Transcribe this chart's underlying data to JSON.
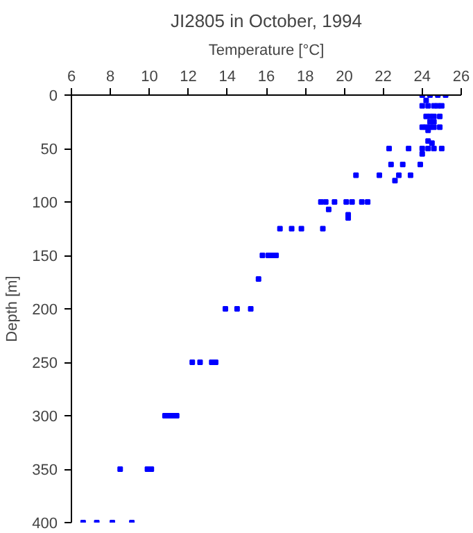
{
  "chart_data": {
    "type": "scatter",
    "title": "JI2805 in October, 1994",
    "xlabel": "Temperature [°C]",
    "ylabel": "Depth [m]",
    "xlim": [
      6,
      26
    ],
    "xticks": [
      6,
      8,
      10,
      12,
      14,
      16,
      18,
      20,
      22,
      24,
      26
    ],
    "ylim": [
      400,
      0
    ],
    "yticks": [
      0,
      50,
      100,
      150,
      200,
      250,
      300,
      350,
      400
    ],
    "grid": false,
    "marker": "square",
    "series": [
      {
        "color": "#0000ff",
        "x": [
          24.0,
          24.4,
          24.8,
          25.2,
          24.2,
          24.0,
          24.3,
          24.6,
          24.8,
          25.0,
          24.2,
          24.4,
          24.6,
          24.9,
          24.4,
          24.6,
          24.0,
          24.2,
          24.4,
          24.6,
          24.9,
          24.3,
          24.3,
          24.5,
          22.3,
          23.3,
          24.0,
          24.3,
          24.6,
          25.0,
          24.0,
          22.4,
          23.0,
          23.9,
          20.6,
          21.8,
          22.8,
          23.4,
          22.6,
          18.8,
          19.05,
          19.5,
          20.1,
          20.4,
          20.9,
          21.2,
          19.2,
          20.2,
          20.2,
          16.7,
          17.3,
          17.8,
          18.9,
          15.8,
          16.1,
          16.3,
          16.5,
          15.6,
          13.9,
          14.5,
          15.2,
          12.2,
          12.6,
          13.2,
          13.4,
          10.8,
          11.0,
          11.2,
          11.4,
          8.5,
          9.9,
          10.1,
          6.6,
          7.3,
          8.1,
          9.1
        ],
        "values": [
          0,
          0,
          0,
          0,
          5,
          10,
          10,
          10,
          10,
          10,
          20,
          20,
          20,
          20,
          25,
          25,
          30,
          30,
          30,
          30,
          30,
          33,
          43,
          45,
          50,
          50,
          50,
          50,
          50,
          50,
          55,
          65,
          65,
          65,
          75,
          75,
          75,
          75,
          80,
          100,
          100,
          100,
          100,
          100,
          100,
          100,
          107,
          112,
          115,
          125,
          125,
          125,
          125,
          150,
          150,
          150,
          150,
          172,
          200,
          200,
          200,
          250,
          250,
          250,
          250,
          300,
          300,
          300,
          300,
          350,
          350,
          350,
          400,
          400,
          400,
          400
        ]
      }
    ]
  }
}
